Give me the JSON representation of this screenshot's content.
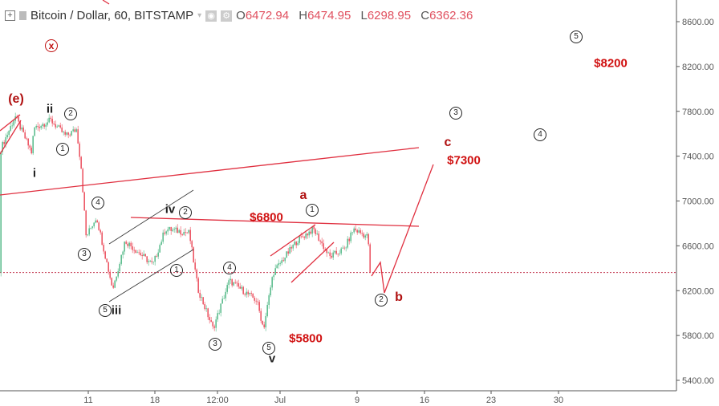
{
  "header": {
    "symbol_title": "Bitcoin / Dollar, 60, BITSTAMP",
    "ohlc": {
      "o_label": "O",
      "o": "6472.94",
      "h_label": "H",
      "h": "6474.95",
      "l_label": "L",
      "l": "6298.95",
      "c_label": "C",
      "c": "6362.36"
    },
    "icons": [
      "plus-box-icon",
      "symbol-square-icon",
      "dropdown-caret-icon",
      "eye-icon",
      "gear-icon"
    ]
  },
  "colors": {
    "up": "#53b987",
    "down": "#eb4d5c",
    "annotation_red": "#d01010",
    "current_price_line": "#c0304a"
  },
  "chart_data": {
    "type": "candlestick",
    "interval": "60",
    "exchange": "BITSTAMP",
    "ylim": [
      5300,
      8750
    ],
    "y_ticks": [
      "8600.00",
      "8200.00",
      "7800.00",
      "7400.00",
      "7000.00",
      "6600.00",
      "6200.00",
      "5800.00",
      "5400.00"
    ],
    "x_ticks": [
      "11",
      "18",
      "12:00",
      "Jul",
      "9",
      "16",
      "23",
      "30"
    ],
    "current_price": 6362.36,
    "grid": false,
    "price_path": [
      {
        "t": "Jun 1 19:00",
        "p": 7469
      },
      {
        "t": "Jun 3 07:00",
        "p": 7755
      },
      {
        "t": "Jun 5 00:00",
        "p": 7433
      },
      {
        "t": "Jun 5 06:00",
        "p": 7650
      },
      {
        "t": "Jun 7 00:00",
        "p": 7720
      },
      {
        "t": "Jun 8 14:00",
        "p": 7580
      },
      {
        "t": "Jun 9 17:00",
        "p": 7640
      },
      {
        "t": "Jun 10 05:00",
        "p": 7290
      },
      {
        "t": "Jun 10 17:00",
        "p": 6680
      },
      {
        "t": "Jun 11 19:00",
        "p": 6860
      },
      {
        "t": "Jun 13 12:00",
        "p": 6215
      },
      {
        "t": "Jun 14 19:00",
        "p": 6645
      },
      {
        "t": "Jun 17 17:00",
        "p": 6430
      },
      {
        "t": "Jun 19 00:00",
        "p": 6750
      },
      {
        "t": "Jun 21 12:00",
        "p": 6717
      },
      {
        "t": "Jun 22 10:00",
        "p": 6215
      },
      {
        "t": "Jun 24 00:00",
        "p": 5860
      },
      {
        "t": "Jun 25 17:00",
        "p": 6290
      },
      {
        "t": "Jun 28 14:00",
        "p": 6110
      },
      {
        "t": "Jun 29 07:00",
        "p": 5860
      },
      {
        "t": "Jun 30 07:00",
        "p": 6360
      },
      {
        "t": "Jul 2 19:00",
        "p": 6645
      },
      {
        "t": "Jul 4 12:00",
        "p": 6750
      },
      {
        "t": "Jul 6 05:00",
        "p": 6500
      },
      {
        "t": "Jul 7 19:00",
        "p": 6575
      },
      {
        "t": "Jul 8 17:00",
        "p": 6750
      },
      {
        "t": "Jul 10 05:00",
        "p": 6680
      },
      {
        "t": "Jul 10 14:00",
        "p": 6362.36
      }
    ],
    "annotations": {
      "wave_e": "(e)",
      "wave_x": "x",
      "i": "i",
      "ii": "ii",
      "iii": "iii",
      "iv": "iv",
      "v": "v",
      "n1": "1",
      "n2": "2",
      "n3": "3",
      "n4": "4",
      "n5": "5",
      "a": "a",
      "b": "b",
      "c": "c",
      "target_7300": "$7300",
      "level_6800": "$6800",
      "level_5800": "$5800",
      "target_8200": "$8200"
    }
  }
}
